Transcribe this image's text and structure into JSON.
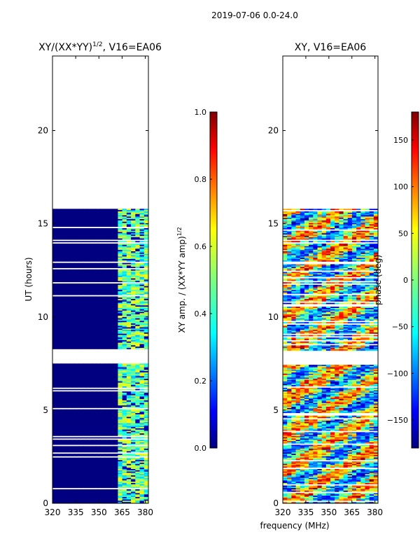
{
  "chart_data": [
    {
      "type": "heatmap",
      "title_main": "XY/(XX*YY)",
      "title_sup": "1/2",
      "title_tail": ", V16=EA06",
      "xlabel": "",
      "ylabel": "UT (hours)",
      "xlim": [
        320,
        382
      ],
      "ylim": [
        0,
        24
      ],
      "xticks": [
        320,
        335,
        350,
        365,
        380
      ],
      "yticks": [
        0,
        5,
        10,
        15,
        20
      ],
      "data_coverage_hours": [
        [
          0,
          7.5
        ],
        [
          8.2,
          15.8
        ]
      ],
      "colorbar": {
        "label_main": "XY amp. / (XX*YY amp)",
        "label_sup": "1/2",
        "range": [
          0.0,
          1.0
        ],
        "ticks": [
          "0.0",
          "0.2",
          "0.4",
          "0.6",
          "0.8",
          "1.0"
        ],
        "colormap": "jet"
      }
    },
    {
      "type": "heatmap",
      "title": "XY, V16=EA06",
      "xlabel": "frequency (MHz)",
      "ylabel": "",
      "xlim": [
        320,
        382
      ],
      "ylim": [
        0,
        24
      ],
      "xticks": [
        320,
        335,
        350,
        365,
        380
      ],
      "yticks": [
        0,
        5,
        10,
        15,
        20
      ],
      "data_coverage_hours": [
        [
          0,
          7.5
        ],
        [
          8.2,
          15.8
        ]
      ],
      "colorbar": {
        "label": "phase (deg)",
        "range": [
          -180,
          180
        ],
        "ticks": [
          "150",
          "100",
          "50",
          "0",
          "−50",
          "−100",
          "−150"
        ],
        "tick_values": [
          150,
          100,
          50,
          0,
          -50,
          -100,
          -150
        ],
        "colormap": "jet"
      }
    }
  ],
  "suptitle": "2019-07-06 0.0-24.0",
  "colors": {
    "low": "#00007f",
    "mid": "#7fff7f",
    "high": "#7f0000"
  }
}
